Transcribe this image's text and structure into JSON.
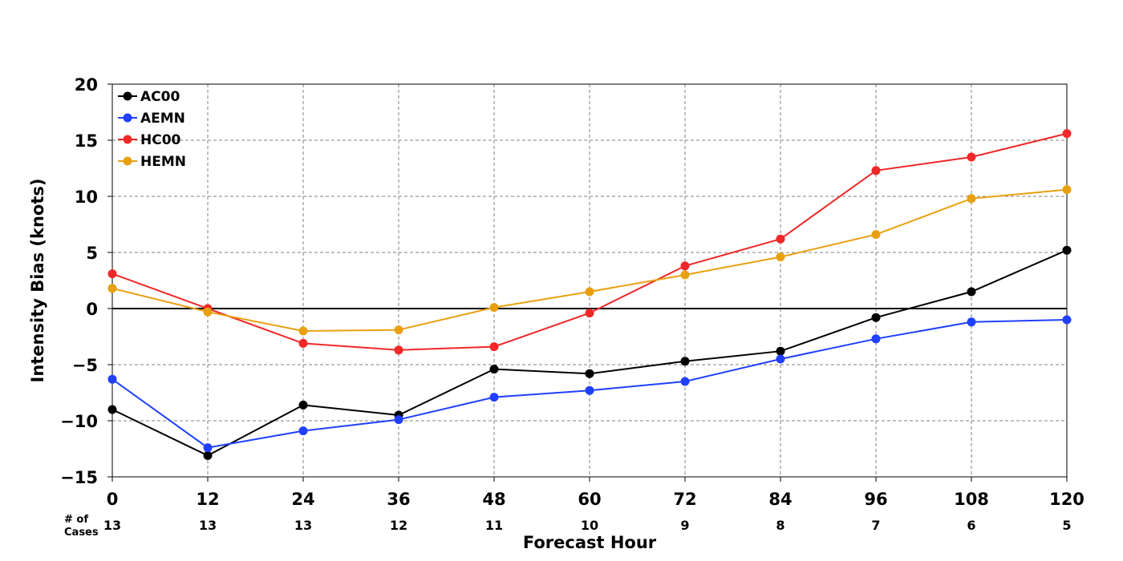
{
  "chart_data": {
    "type": "line",
    "xlabel": "Forecast Hour",
    "ylabel": "Intensity Bias (knots)",
    "cases_label_line1": "# of",
    "cases_label_line2": "Cases",
    "x": [
      0,
      12,
      24,
      36,
      48,
      60,
      72,
      84,
      96,
      108,
      120
    ],
    "x_tick_labels": [
      "0",
      "12",
      "24",
      "36",
      "48",
      "60",
      "72",
      "84",
      "96",
      "108",
      "120"
    ],
    "cases": [
      "13",
      "13",
      "13",
      "12",
      "11",
      "10",
      "9",
      "8",
      "7",
      "6",
      "5"
    ],
    "xlim": [
      0,
      120
    ],
    "ylim": [
      -15,
      20
    ],
    "y_ticks": [
      20,
      15,
      10,
      5,
      0,
      -5,
      -10,
      -15
    ],
    "y_tick_labels": [
      "20",
      "15",
      "10",
      "5",
      "0",
      "−5",
      "−10",
      "−15"
    ],
    "grid": true,
    "zero_line": true,
    "legend_position": "top-left",
    "series": [
      {
        "name": "AC00",
        "color": "#000000",
        "values": [
          -9.0,
          -13.1,
          -8.6,
          -9.5,
          -5.4,
          -5.8,
          -4.7,
          -3.8,
          -0.8,
          1.5,
          5.2
        ]
      },
      {
        "name": "AEMN",
        "color": "#2040ff",
        "values": [
          -6.3,
          -12.4,
          -10.9,
          -9.9,
          -7.9,
          -7.3,
          -6.5,
          -4.5,
          -2.7,
          -1.2,
          -1.0
        ]
      },
      {
        "name": "HC00",
        "color": "#f02828",
        "values": [
          3.1,
          0.0,
          -3.1,
          -3.7,
          -3.4,
          -0.4,
          3.8,
          6.2,
          12.3,
          13.5,
          15.6
        ]
      },
      {
        "name": "HEMN",
        "color": "#e8a010",
        "values": [
          1.8,
          -0.3,
          -2.0,
          -1.9,
          0.1,
          1.5,
          3.0,
          4.6,
          6.6,
          9.8,
          10.6
        ]
      }
    ]
  }
}
